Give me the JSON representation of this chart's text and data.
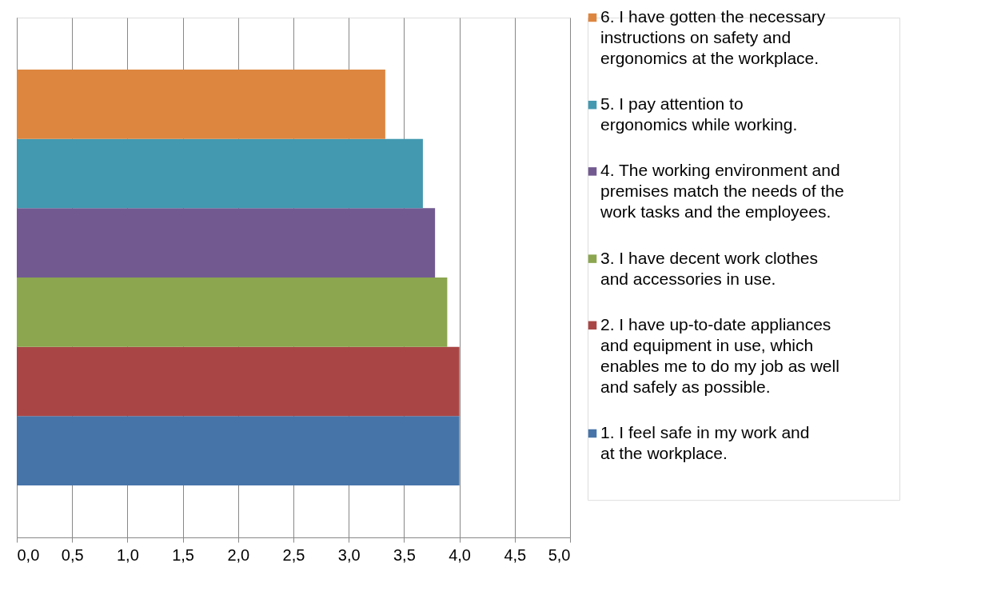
{
  "chart_data": {
    "type": "bar",
    "orientation": "horizontal",
    "categories": [
      null
    ],
    "series": [
      {
        "name": "1. I feel safe in my work and at the workplace.",
        "color": "#4674a8",
        "values": [
          4.0
        ]
      },
      {
        "name": "2. I have up-to-date appliances and equipment in use, which enables me to do my job as well and safely as possible.",
        "color": "#a94645",
        "values": [
          4.0
        ]
      },
      {
        "name": "3. I have decent work clothes and accessories in use.",
        "color": "#8ba64f",
        "values": [
          3.89
        ]
      },
      {
        "name": "4. The working environment and premises match the needs of the work tasks and the employees.",
        "color": "#725a91",
        "values": [
          3.78
        ]
      },
      {
        "name": "5. I pay attention to ergonomics while working.",
        "color": "#4299b0",
        "values": [
          3.67
        ]
      },
      {
        "name": "6. I have gotten the necessary instructions on safety and ergonomics at the workplace.",
        "color": "#dd8640",
        "values": [
          3.33
        ]
      }
    ],
    "xlim": [
      0,
      5
    ],
    "xticks": [
      {
        "value": 0,
        "label": "0,0"
      },
      {
        "value": 0.5,
        "label": "0,5"
      },
      {
        "value": 1,
        "label": "1,0"
      },
      {
        "value": 1.5,
        "label": "1,5"
      },
      {
        "value": 2,
        "label": "2,0"
      },
      {
        "value": 2.5,
        "label": "2,5"
      },
      {
        "value": 3,
        "label": "3,0"
      },
      {
        "value": 3.5,
        "label": "3,5"
      },
      {
        "value": 4,
        "label": "4,0"
      },
      {
        "value": 4.5,
        "label": "4,5"
      },
      {
        "value": 5,
        "label": "5,0"
      }
    ],
    "grid": "x",
    "legend": "right"
  }
}
